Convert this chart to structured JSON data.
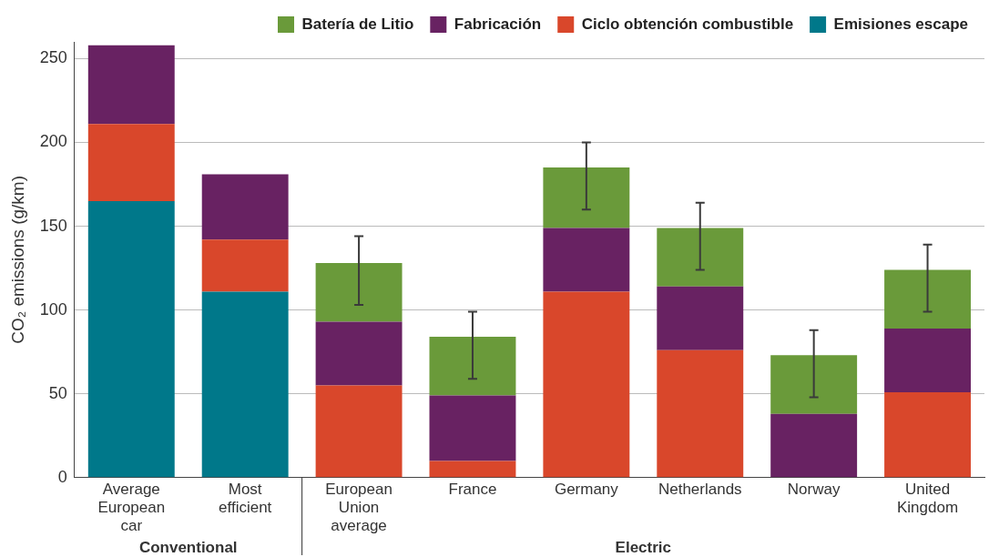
{
  "chart_data": {
    "type": "bar",
    "stacked": true,
    "ylabel": "CO₂ emissions (g/km)",
    "categories": [
      "Average European car",
      "Most efficient",
      "European Union average",
      "France",
      "Germany",
      "Netherlands",
      "Norway",
      "United Kingdom"
    ],
    "series": [
      {
        "name": "Emisiones escape",
        "color": "#00788a",
        "values": [
          165,
          111,
          0,
          0,
          0,
          0,
          0,
          0
        ]
      },
      {
        "name": "Ciclo obtención combustible",
        "color": "#d9472b",
        "values": [
          46,
          31,
          55,
          10,
          111,
          76,
          0,
          51
        ]
      },
      {
        "name": "Fabricación",
        "color": "#682262",
        "values": [
          47,
          39,
          38,
          39,
          38,
          38,
          38,
          38
        ]
      },
      {
        "name": "Batería de Litio",
        "color": "#6a9a3a",
        "values": [
          0,
          0,
          35,
          35,
          36,
          35,
          35,
          35
        ],
        "errors": [
          null,
          null,
          [
            103,
            144
          ],
          [
            59,
            99
          ],
          [
            160,
            200
          ],
          [
            124,
            164
          ],
          [
            48,
            88
          ],
          [
            99,
            139
          ]
        ]
      }
    ],
    "ylim": [
      0,
      260
    ],
    "yticks": [
      0,
      50,
      100,
      150,
      200,
      250
    ],
    "grid": "y",
    "legend": "top",
    "annotations": [
      "Conventional",
      "Electric"
    ]
  }
}
